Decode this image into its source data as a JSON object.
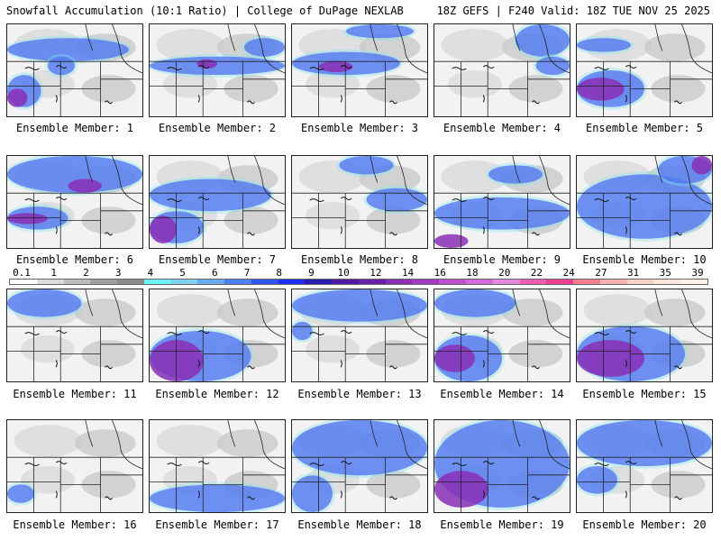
{
  "header": {
    "title_left": "Snowfall Accumulation (10:1 Ratio) | College of DuPage NEXLAB",
    "title_right": "18Z GEFS | F240 Valid: 18Z TUE NOV 25 2025"
  },
  "colorbar": {
    "labels": [
      "0.1",
      "1",
      "2",
      "3",
      "4",
      "5",
      "6",
      "7",
      "8",
      "9",
      "10",
      "12",
      "14",
      "16",
      "18",
      "20",
      "22",
      "24",
      "27",
      "31",
      "35",
      "39"
    ],
    "colors": [
      "#ffffff",
      "#dcdcdc",
      "#bdbdbd",
      "#a0a0a0",
      "#8c8c8c",
      "#6cf2f2",
      "#7fd3f0",
      "#6aa9f0",
      "#4d7ff5",
      "#2f55f0",
      "#1f2ff0",
      "#2a1cb0",
      "#4e1aa0",
      "#6a1fa8",
      "#8a2fb6",
      "#a13bc4",
      "#c04fd0",
      "#d26ad8",
      "#e18be0",
      "#ee5db0",
      "#ef3f8e",
      "#f57e8e",
      "#f8b0b0",
      "#fbd2c8",
      "#ffe6da",
      "#fff1ea"
    ]
  },
  "panels": [
    {
      "label": "Ensemble Member: 1",
      "snow": [
        [
          0.0,
          0.15,
          0.9,
          0.25
        ],
        [
          0.0,
          0.55,
          0.25,
          0.35
        ],
        [
          0.3,
          0.35,
          0.2,
          0.2
        ]
      ],
      "heavy": [
        [
          0.0,
          0.7,
          0.15,
          0.2
        ]
      ]
    },
    {
      "label": "Ensemble Member: 2",
      "snow": [
        [
          0.0,
          0.35,
          1.0,
          0.2
        ],
        [
          0.7,
          0.15,
          0.3,
          0.2
        ]
      ],
      "heavy": [
        [
          0.35,
          0.38,
          0.15,
          0.1
        ]
      ]
    },
    {
      "label": "Ensemble Member: 3",
      "snow": [
        [
          0.0,
          0.3,
          0.8,
          0.25
        ],
        [
          0.4,
          0.0,
          0.5,
          0.15
        ]
      ],
      "heavy": [
        [
          0.2,
          0.4,
          0.25,
          0.12
        ]
      ]
    },
    {
      "label": "Ensemble Member: 4",
      "snow": [
        [
          0.6,
          0.0,
          0.4,
          0.35
        ],
        [
          0.75,
          0.35,
          0.25,
          0.2
        ]
      ],
      "heavy": []
    },
    {
      "label": "Ensemble Member: 5",
      "snow": [
        [
          0.0,
          0.5,
          0.5,
          0.4
        ],
        [
          0.0,
          0.15,
          0.4,
          0.15
        ]
      ],
      "heavy": [
        [
          0.0,
          0.58,
          0.35,
          0.25
        ]
      ]
    },
    {
      "label": "Ensemble Member: 6",
      "snow": [
        [
          0.0,
          0.0,
          1.0,
          0.4
        ],
        [
          0.0,
          0.55,
          0.45,
          0.25
        ]
      ],
      "heavy": [
        [
          0.45,
          0.25,
          0.25,
          0.15
        ],
        [
          0.0,
          0.62,
          0.3,
          0.12
        ]
      ]
    },
    {
      "label": "Ensemble Member: 7",
      "snow": [
        [
          0.0,
          0.25,
          0.9,
          0.35
        ],
        [
          0.0,
          0.6,
          0.4,
          0.35
        ]
      ],
      "heavy": [
        [
          0.0,
          0.65,
          0.2,
          0.3
        ]
      ]
    },
    {
      "label": "Ensemble Member: 8",
      "snow": [
        [
          0.55,
          0.35,
          0.45,
          0.25
        ],
        [
          0.35,
          0.0,
          0.4,
          0.2
        ]
      ],
      "heavy": []
    },
    {
      "label": "Ensemble Member: 9",
      "snow": [
        [
          0.0,
          0.45,
          1.0,
          0.35
        ],
        [
          0.4,
          0.1,
          0.4,
          0.2
        ]
      ],
      "heavy": [
        [
          0.0,
          0.85,
          0.25,
          0.15
        ]
      ]
    },
    {
      "label": "Ensemble Member: 10",
      "snow": [
        [
          0.0,
          0.2,
          1.0,
          0.7
        ],
        [
          0.6,
          0.0,
          0.4,
          0.3
        ]
      ],
      "heavy": [
        [
          0.85,
          0.0,
          0.15,
          0.2
        ]
      ]
    },
    {
      "label": "Ensemble Member: 11",
      "snow": [
        [
          0.0,
          0.0,
          0.55,
          0.3
        ]
      ],
      "heavy": []
    },
    {
      "label": "Ensemble Member: 12",
      "snow": [
        [
          0.0,
          0.45,
          0.75,
          0.55
        ]
      ],
      "heavy": [
        [
          0.0,
          0.55,
          0.4,
          0.45
        ]
      ]
    },
    {
      "label": "Ensemble Member: 13",
      "snow": [
        [
          0.0,
          0.0,
          1.0,
          0.35
        ],
        [
          0.0,
          0.35,
          0.15,
          0.2
        ]
      ],
      "heavy": []
    },
    {
      "label": "Ensemble Member: 14",
      "snow": [
        [
          0.0,
          0.0,
          0.6,
          0.3
        ],
        [
          0.0,
          0.5,
          0.5,
          0.5
        ]
      ],
      "heavy": [
        [
          0.0,
          0.6,
          0.3,
          0.3
        ]
      ]
    },
    {
      "label": "Ensemble Member: 15",
      "snow": [
        [
          0.0,
          0.4,
          0.8,
          0.6
        ]
      ],
      "heavy": [
        [
          0.0,
          0.55,
          0.5,
          0.4
        ]
      ]
    },
    {
      "label": "Ensemble Member: 16",
      "snow": [
        [
          0.0,
          0.7,
          0.2,
          0.2
        ]
      ],
      "heavy": []
    },
    {
      "label": "Ensemble Member: 17",
      "snow": [
        [
          0.0,
          0.7,
          1.0,
          0.3
        ]
      ],
      "heavy": []
    },
    {
      "label": "Ensemble Member: 18",
      "snow": [
        [
          0.0,
          0.0,
          1.0,
          0.6
        ],
        [
          0.0,
          0.6,
          0.3,
          0.4
        ]
      ],
      "heavy": []
    },
    {
      "label": "Ensemble Member: 19",
      "snow": [
        [
          0.0,
          0.0,
          1.0,
          0.95
        ]
      ],
      "heavy": [
        [
          0.0,
          0.55,
          0.4,
          0.4
        ]
      ]
    },
    {
      "label": "Ensemble Member: 20",
      "snow": [
        [
          0.0,
          0.0,
          1.0,
          0.5
        ],
        [
          0.0,
          0.5,
          0.3,
          0.3
        ]
      ],
      "heavy": []
    }
  ]
}
